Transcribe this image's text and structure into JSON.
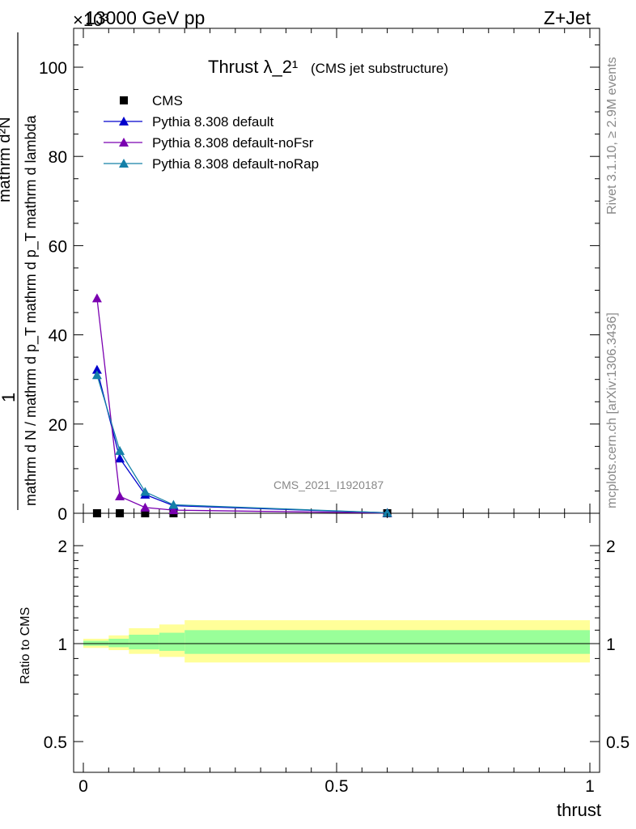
{
  "header": {
    "left": "13000 GeV pp",
    "right": "Z+Jet",
    "exponent": "×10³"
  },
  "side_labels": {
    "rivet": "Rivet 3.1.10, ≥ 2.9M events",
    "mcplots": "mcplots.cern.ch [arXiv:1306.3436]"
  },
  "chart_data": [
    {
      "type": "line",
      "title": "Thrust λ_2¹",
      "subtitle": "(CMS jet substructure)",
      "watermark": "CMS_2021_I1920187",
      "ylabel_fraction_num": "1",
      "ylabel_fraction_den": "mathrm d N / mathrm d p_T mathrm d p_T mathrm d lambda",
      "ylabel_rot_top": "mathrm d²N",
      "ylim": [
        0,
        110
      ],
      "xlim": [
        -0.02,
        1.0
      ],
      "yticks": [
        0,
        20,
        40,
        60,
        80,
        100
      ],
      "ytick_labels": [
        "0",
        "20",
        "40",
        "60",
        "80",
        "100"
      ],
      "legend_position": "top-left",
      "series": [
        {
          "name": "CMS",
          "color": "#000000",
          "marker": "square",
          "x": [
            0.027,
            0.072,
            0.122,
            0.178,
            0.6
          ],
          "y": [
            0.0,
            0.0,
            0.0,
            0.0,
            0.0
          ]
        },
        {
          "name": "Pythia 8.308 default",
          "color": "#0000cc",
          "marker": "triangle",
          "x": [
            0.027,
            0.072,
            0.122,
            0.178,
            0.6
          ],
          "y": [
            32.2,
            12.3,
            4.2,
            1.7,
            0.1
          ]
        },
        {
          "name": "Pythia 8.308 default-noFsr",
          "color": "#7a00b0",
          "marker": "triangle",
          "x": [
            0.027,
            0.072,
            0.122,
            0.178,
            0.6
          ],
          "y": [
            48.2,
            3.8,
            1.3,
            0.7,
            0.05
          ]
        },
        {
          "name": "Pythia 8.308 default-noRap",
          "color": "#1580a8",
          "marker": "triangle",
          "x": [
            0.027,
            0.072,
            0.122,
            0.178,
            0.6
          ],
          "y": [
            31.0,
            14.0,
            4.8,
            1.9,
            0.1
          ]
        }
      ]
    },
    {
      "type": "area",
      "ylabel": "Ratio to CMS",
      "xlabel": "thrust",
      "ylim": [
        0.4,
        2.4
      ],
      "xticks": [
        0,
        0.5,
        1
      ],
      "xtick_labels": [
        "0",
        "0.5",
        "1"
      ],
      "yticks": [
        0.5,
        1,
        2
      ],
      "ytick_labels": [
        "0.5",
        "1",
        "2"
      ],
      "bands": {
        "edges": [
          0.0,
          0.05,
          0.09,
          0.15,
          0.2,
          1.0
        ],
        "outer_lo": [
          0.97,
          0.955,
          0.93,
          0.91,
          0.875
        ],
        "outer_hi": [
          1.035,
          1.06,
          1.115,
          1.145,
          1.18
        ],
        "inner_lo": [
          0.985,
          0.975,
          0.96,
          0.95,
          0.93
        ],
        "inner_hi": [
          1.02,
          1.035,
          1.065,
          1.08,
          1.1
        ],
        "outer_color": "#ffff99",
        "inner_color": "#99ff99"
      },
      "reference_line": 1
    }
  ]
}
